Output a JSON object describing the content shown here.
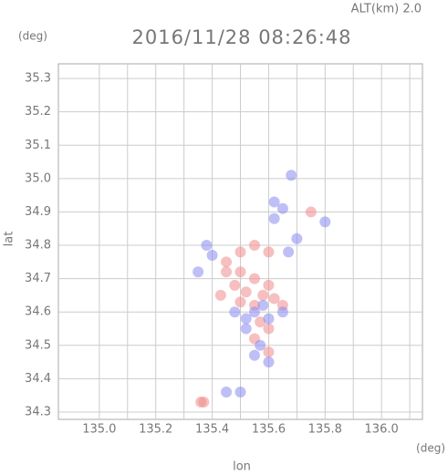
{
  "chart_data": {
    "type": "scatter",
    "title": "2016/11/28 08:26:48",
    "subtitle": "ALT(km) 2.0",
    "y_unit": "(deg)",
    "x_unit": "(deg)",
    "xlabel": "lon",
    "ylabel": "lat",
    "xlim": [
      134.855,
      136.145
    ],
    "ylim": [
      34.278,
      35.344
    ],
    "xticks": [
      {
        "value": 135,
        "label": "135.0"
      },
      135.2,
      135.4,
      135.6,
      135.8,
      {
        "value": 136,
        "label": "136.0"
      }
    ],
    "xgrid": [
      135.1,
      135.3,
      135.5,
      135.7,
      135.9,
      136.1
    ],
    "yticks": [
      34.3,
      34.4,
      34.5,
      34.6,
      34.7,
      34.8,
      34.9,
      {
        "value": 35,
        "label": "35.0"
      },
      35.1,
      35.2,
      35.3
    ],
    "grid": true,
    "series": [
      {
        "color": "#f08a8a",
        "x": [
          135.45,
          135.5,
          135.55,
          135.6,
          135.48,
          135.52,
          135.58,
          135.62,
          135.55,
          135.5,
          135.45,
          135.5,
          135.55,
          135.6,
          135.43,
          135.65,
          135.57,
          135.6,
          135.55,
          135.6,
          135.37,
          135.36,
          135.75
        ],
        "y": [
          34.72,
          34.72,
          34.7,
          34.68,
          34.68,
          34.66,
          34.65,
          34.64,
          34.62,
          34.63,
          34.75,
          34.78,
          34.8,
          34.78,
          34.65,
          34.62,
          34.57,
          34.55,
          34.52,
          34.48,
          34.33,
          34.33,
          34.9
        ]
      },
      {
        "color": "#8a8af0",
        "x": [
          135.68,
          135.62,
          135.65,
          135.8,
          135.38,
          135.4,
          135.55,
          135.58,
          135.52,
          135.6,
          135.57,
          135.6,
          135.55,
          135.52,
          135.65,
          135.7,
          135.67,
          135.45,
          135.5,
          135.62,
          135.35,
          135.48
        ],
        "y": [
          35.01,
          34.93,
          34.91,
          34.87,
          34.8,
          34.77,
          34.6,
          34.62,
          34.58,
          34.58,
          34.5,
          34.45,
          34.47,
          34.55,
          34.6,
          34.82,
          34.78,
          34.36,
          34.36,
          34.88,
          34.72,
          34.6
        ]
      }
    ]
  }
}
